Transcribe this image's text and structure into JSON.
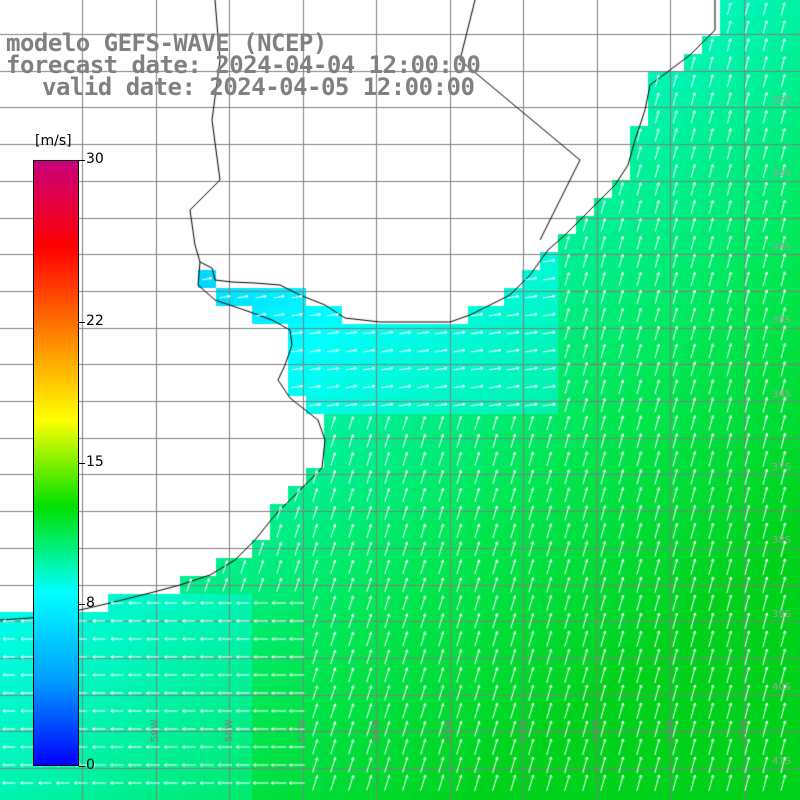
{
  "header": {
    "title": "modelo GEFS-WAVE (NCEP)",
    "forecast": "forecast date: 2024-04-04 12:00:00",
    "valid": "valid date: 2024-04-05 12:00:00"
  },
  "colorbar": {
    "unit": "[m/s]",
    "ticks": [
      {
        "label": "30",
        "value": 30
      },
      {
        "label": "22",
        "value": 22
      },
      {
        "label": "15",
        "value": 15
      },
      {
        "label": "8",
        "value": 8
      },
      {
        "label": "0",
        "value": 0
      }
    ],
    "gradient": [
      "#0000ff",
      "#00a0ff",
      "#00ffff",
      "#00e000",
      "#ffff00",
      "#ff8000",
      "#ff0000",
      "#c8007a"
    ]
  },
  "grid": {
    "lon_labels": [
      "59W",
      "58W",
      "57W",
      "56W",
      "55W",
      "54W",
      "53W",
      "52W",
      "51W"
    ],
    "lat_labels": [
      "32S",
      "33S",
      "34S",
      "35S",
      "36S",
      "37S",
      "38S",
      "39S",
      "40S",
      "41S"
    ]
  },
  "colors": {
    "land": "#ffffff",
    "coast": "#000000",
    "grid": "#808080",
    "arrow": "#ffffff"
  }
}
